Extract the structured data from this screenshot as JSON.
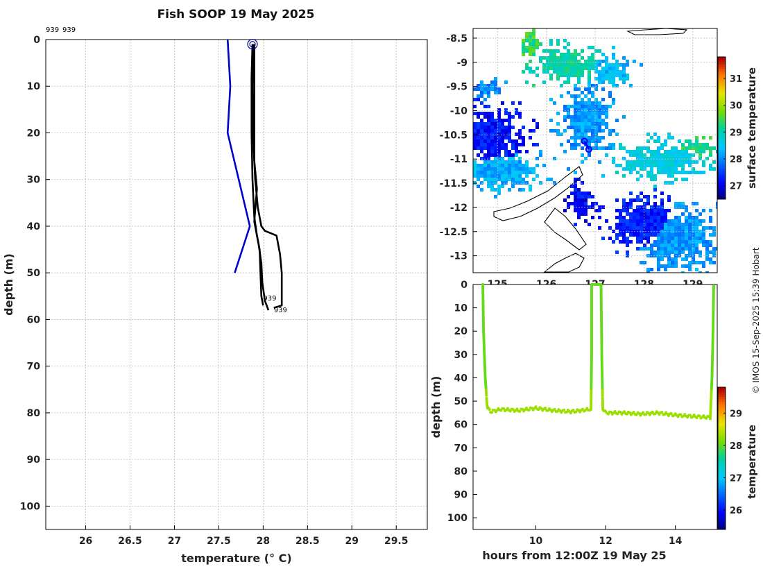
{
  "title": "Fish SOOP 19 May 2025",
  "corner_labels": [
    "939",
    "939"
  ],
  "credit": "© IMOS 15-Sep-2025 15:39 Hobart",
  "chart_data": [
    {
      "type": "line",
      "name": "profile",
      "xlabel": "temperature (° C)",
      "ylabel": "depth (m)",
      "xlim": [
        25.55,
        29.85
      ],
      "ylim": [
        105,
        0
      ],
      "y_inverted": true,
      "xticks": [
        "26",
        "26.5",
        "27",
        "27.5",
        "28",
        "28.5",
        "29",
        "29.5"
      ],
      "yticks": [
        "0",
        "10",
        "20",
        "30",
        "40",
        "50",
        "60",
        "70",
        "80",
        "90",
        "100"
      ],
      "grid": true,
      "series": [
        {
          "color": "#0000cc",
          "points": [
            [
              27.6,
              0
            ],
            [
              27.63,
              10
            ],
            [
              27.6,
              20
            ],
            [
              27.85,
              40
            ],
            [
              27.68,
              50
            ]
          ]
        },
        {
          "color": "#000000",
          "points": [
            [
              27.88,
              1
            ],
            [
              27.87,
              8
            ],
            [
              27.87,
              20
            ],
            [
              27.88,
              30
            ],
            [
              27.9,
              38
            ],
            [
              27.93,
              42
            ],
            [
              27.96,
              45
            ],
            [
              27.97,
              50
            ],
            [
              27.98,
              55
            ],
            [
              28.0,
              57
            ]
          ]
        },
        {
          "color": "#000000",
          "points": [
            [
              27.89,
              1
            ],
            [
              27.88,
              10
            ],
            [
              27.89,
              22
            ],
            [
              27.91,
              30
            ],
            [
              27.94,
              36
            ],
            [
              27.98,
              40
            ],
            [
              28.02,
              41
            ],
            [
              28.15,
              42
            ],
            [
              28.19,
              46
            ],
            [
              28.21,
              50
            ],
            [
              28.21,
              57
            ],
            [
              28.12,
              57.5
            ]
          ]
        },
        {
          "color": "#000000",
          "points": [
            [
              27.9,
              1
            ],
            [
              27.9,
              10
            ],
            [
              27.9,
              26
            ],
            [
              27.93,
              32
            ],
            [
              27.9,
              39
            ],
            [
              27.95,
              44
            ],
            [
              27.98,
              48
            ],
            [
              27.99,
              52
            ],
            [
              28.02,
              56
            ],
            [
              28.06,
              58
            ]
          ]
        }
      ],
      "start_marker": {
        "x": 27.88,
        "y": 1
      },
      "end_labels": [
        {
          "text": "939",
          "x": 28.0,
          "y": 55.5
        },
        {
          "text": "939",
          "x": 28.12,
          "y": 58
        }
      ]
    },
    {
      "type": "heatmap",
      "name": "map",
      "xlim": [
        124.5,
        129.5
      ],
      "ylim": [
        -13.35,
        -8.3
      ],
      "xticks": [
        "125",
        "126",
        "127",
        "128",
        "129"
      ],
      "yticks": [
        "-8.5",
        "-9",
        "-9.5",
        "-10",
        "-10.5",
        "-11",
        "-11.5",
        "-12",
        "-12.5",
        "-13"
      ],
      "grid": true,
      "colorbar": {
        "label": "surface temperature",
        "range": [
          26.5,
          31.8
        ],
        "ticks": [
          "27",
          "28",
          "29",
          "30",
          "31"
        ]
      },
      "track": [
        [
          126.78,
          -10.63
        ],
        [
          126.87,
          -10.8
        ]
      ]
    },
    {
      "type": "scatter",
      "name": "section",
      "xlabel": "hours from 12:00Z 19 May 25",
      "ylabel": "depth (m)",
      "xlim": [
        8.2,
        15.2
      ],
      "ylim": [
        105,
        0
      ],
      "y_inverted": true,
      "xticks": [
        "10",
        "12",
        "14"
      ],
      "yticks": [
        "0",
        "10",
        "20",
        "30",
        "40",
        "50",
        "60",
        "70",
        "80",
        "90",
        "100"
      ],
      "colorbar": {
        "label": "temperature",
        "range": [
          25.4,
          29.8
        ],
        "ticks": [
          "26",
          "27",
          "28",
          "29"
        ]
      },
      "trace": [
        [
          8.48,
          0
        ],
        [
          8.5,
          20
        ],
        [
          8.55,
          40
        ],
        [
          8.6,
          51
        ],
        [
          8.62,
          53
        ],
        [
          8.7,
          54.5
        ],
        [
          9.0,
          53.5
        ],
        [
          9.5,
          54
        ],
        [
          10.0,
          53
        ],
        [
          10.5,
          54
        ],
        [
          11.0,
          54.5
        ],
        [
          11.3,
          54
        ],
        [
          11.55,
          53.5
        ],
        [
          11.58,
          54
        ],
        [
          11.6,
          30
        ],
        [
          11.6,
          0
        ],
        [
          11.87,
          0
        ],
        [
          11.89,
          30
        ],
        [
          11.92,
          53
        ],
        [
          12.0,
          55
        ],
        [
          12.5,
          55
        ],
        [
          13.0,
          55.5
        ],
        [
          13.5,
          55
        ],
        [
          14.0,
          56
        ],
        [
          14.5,
          56.5
        ],
        [
          15.0,
          57
        ],
        [
          15.05,
          40
        ],
        [
          15.08,
          20
        ],
        [
          15.1,
          0
        ]
      ]
    }
  ]
}
